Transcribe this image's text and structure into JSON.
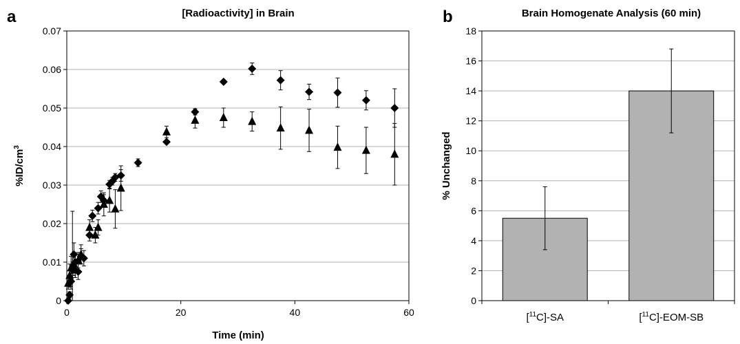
{
  "chart_data": [
    {
      "panel": "a",
      "type": "scatter",
      "title": "[Radioactivity] in Brain",
      "xlabel": "Time (min)",
      "ylabel": "%ID/cm3",
      "ylabel_main": "%ID/cm",
      "ylabel_sup": "3",
      "xlim": [
        0,
        60
      ],
      "ylim": [
        0,
        0.07
      ],
      "xticks": [
        0,
        20,
        40,
        60
      ],
      "yticks": [
        0,
        0.01,
        0.02,
        0.03,
        0.04,
        0.05,
        0.06,
        0.07
      ],
      "yticklabels": [
        "0",
        "0.01",
        "0.02",
        "0.03",
        "0.04",
        "0.05",
        "0.06",
        "0.07"
      ],
      "grid": "horizontal",
      "series": [
        {
          "marker": "diamond",
          "points": [
            {
              "x": 0.25,
              "y": 0.0,
              "err": 0.0005
            },
            {
              "x": 0.5,
              "y": 0.0015,
              "err": 0.0008
            },
            {
              "x": 0.75,
              "y": 0.005,
              "err": 0.002
            },
            {
              "x": 1.0,
              "y": 0.008,
              "err": 0.0152
            },
            {
              "x": 1.25,
              "y": 0.012,
              "err": 0.003
            },
            {
              "x": 1.5,
              "y": 0.01,
              "err": 0.002
            },
            {
              "x": 2.0,
              "y": 0.0075,
              "err": 0.002
            },
            {
              "x": 2.5,
              "y": 0.0115,
              "err": 0.002
            },
            {
              "x": 3.0,
              "y": 0.011,
              "err": 0.002
            },
            {
              "x": 4.0,
              "y": 0.017,
              "err": 0.0015
            },
            {
              "x": 4.5,
              "y": 0.022,
              "err": 0.0015
            },
            {
              "x": 5.5,
              "y": 0.024,
              "err": 0.0015
            },
            {
              "x": 6.0,
              "y": 0.027,
              "err": 0.0015
            },
            {
              "x": 6.5,
              "y": 0.026,
              "err": 0.0015
            },
            {
              "x": 7.5,
              "y": 0.0302,
              "err": 0.001
            },
            {
              "x": 8.0,
              "y": 0.031,
              "err": 0.001
            },
            {
              "x": 8.5,
              "y": 0.032,
              "err": 0.001
            },
            {
              "x": 9.5,
              "y": 0.0325,
              "err": 0.0015
            },
            {
              "x": 12.5,
              "y": 0.0358,
              "err": 0.001
            },
            {
              "x": 17.5,
              "y": 0.0412,
              "err": 0.0005
            },
            {
              "x": 22.5,
              "y": 0.049,
              "err": 0.0008
            },
            {
              "x": 27.5,
              "y": 0.0568,
              "err": 0.0005
            },
            {
              "x": 32.5,
              "y": 0.0602,
              "err": 0.0015
            },
            {
              "x": 37.5,
              "y": 0.0572,
              "err": 0.0025
            },
            {
              "x": 42.5,
              "y": 0.0542,
              "err": 0.002
            },
            {
              "x": 47.5,
              "y": 0.054,
              "err": 0.0038
            },
            {
              "x": 52.5,
              "y": 0.052,
              "err": 0.0025
            },
            {
              "x": 57.5,
              "y": 0.05,
              "err": 0.005
            }
          ]
        },
        {
          "marker": "triangle",
          "points": [
            {
              "x": 0.25,
              "y": 0.0045,
              "err": 0.0015
            },
            {
              "x": 0.5,
              "y": 0.0065,
              "err": 0.003
            },
            {
              "x": 0.75,
              "y": 0.0085,
              "err": 0.003
            },
            {
              "x": 1.0,
              "y": 0.009,
              "err": 0.003
            },
            {
              "x": 1.25,
              "y": 0.0095,
              "err": 0.003
            },
            {
              "x": 1.5,
              "y": 0.008,
              "err": 0.002
            },
            {
              "x": 2.0,
              "y": 0.0105,
              "err": 0.002
            },
            {
              "x": 2.5,
              "y": 0.012,
              "err": 0.0025
            },
            {
              "x": 4.0,
              "y": 0.019,
              "err": 0.002
            },
            {
              "x": 5.0,
              "y": 0.017,
              "err": 0.002
            },
            {
              "x": 5.5,
              "y": 0.019,
              "err": 0.002
            },
            {
              "x": 6.5,
              "y": 0.025,
              "err": 0.003
            },
            {
              "x": 7.5,
              "y": 0.026,
              "err": 0.003
            },
            {
              "x": 8.5,
              "y": 0.0238,
              "err": 0.005
            },
            {
              "x": 9.5,
              "y": 0.0292,
              "err": 0.0058
            },
            {
              "x": 17.5,
              "y": 0.0438,
              "err": 0.0015
            },
            {
              "x": 22.5,
              "y": 0.0468,
              "err": 0.002
            },
            {
              "x": 27.5,
              "y": 0.0475,
              "err": 0.0025
            },
            {
              "x": 32.5,
              "y": 0.0465,
              "err": 0.0025
            },
            {
              "x": 37.5,
              "y": 0.0448,
              "err": 0.0055
            },
            {
              "x": 42.5,
              "y": 0.0442,
              "err": 0.0055
            },
            {
              "x": 47.5,
              "y": 0.0398,
              "err": 0.0055
            },
            {
              "x": 52.5,
              "y": 0.039,
              "err": 0.006
            },
            {
              "x": 57.5,
              "y": 0.038,
              "err": 0.008
            }
          ]
        }
      ]
    },
    {
      "panel": "b",
      "type": "bar",
      "title": "Brain Homogenate Analysis (60 min)",
      "xlabel": "",
      "ylabel": "% Unchanged",
      "ylim": [
        0,
        18
      ],
      "yticks": [
        0,
        2,
        4,
        6,
        8,
        10,
        12,
        14,
        16,
        18
      ],
      "grid": "horizontal",
      "bar_color": "#b2b2b2",
      "categories": [
        {
          "pre": "[",
          "sup": "11",
          "post": "C]-SA"
        },
        {
          "pre": "[",
          "sup": "11",
          "post": "C]-EOM-SB"
        }
      ],
      "category_labels": [
        "[11C]-SA",
        "[11C]-EOM-SB"
      ],
      "values": [
        5.5,
        14.0
      ],
      "errors": [
        2.1,
        2.8
      ]
    }
  ]
}
